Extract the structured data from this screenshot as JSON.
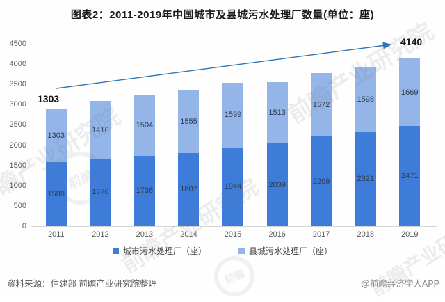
{
  "title": "图表2：2011-2019年中国城市及县城污水处理厂数量(单位：座)",
  "chart_data": {
    "type": "bar",
    "stacked": true,
    "title": "图表2：2011-2019年中国城市及县城污水处理厂数量(单位：座)",
    "categories": [
      "2011",
      "2012",
      "2013",
      "2014",
      "2015",
      "2016",
      "2017",
      "2018",
      "2019"
    ],
    "series": [
      {
        "name": "城市污水处理厂（座）",
        "color": "#3d7cd9",
        "values": [
          1588,
          1670,
          1736,
          1807,
          1944,
          2039,
          2209,
          2321,
          2471
        ]
      },
      {
        "name": "县城污水处理厂（座）",
        "color": "#93b5e8",
        "values": [
          1303,
          1416,
          1504,
          1555,
          1599,
          1513,
          1572,
          1598,
          1669
        ]
      }
    ],
    "totals": [
      2891,
      3086,
      3240,
      3362,
      3543,
      3552,
      3781,
      3919,
      4140
    ],
    "ylim": [
      0,
      4500
    ],
    "yticks": [
      0,
      500,
      1000,
      1500,
      2000,
      2500,
      3000,
      3500,
      4000,
      4500
    ],
    "grid": false,
    "legend_position": "bottom",
    "annotations": {
      "start_label": "1303",
      "end_label": "4140",
      "arrow": true,
      "arrow_color": "#2e74b5"
    }
  },
  "footer": {
    "source": "资料来源：住建部 前瞻产业研究院整理",
    "credit": "@前瞻经济学人APP"
  },
  "watermark": {
    "text": "前瞻产业研究院",
    "logo_text": "前瞻"
  }
}
